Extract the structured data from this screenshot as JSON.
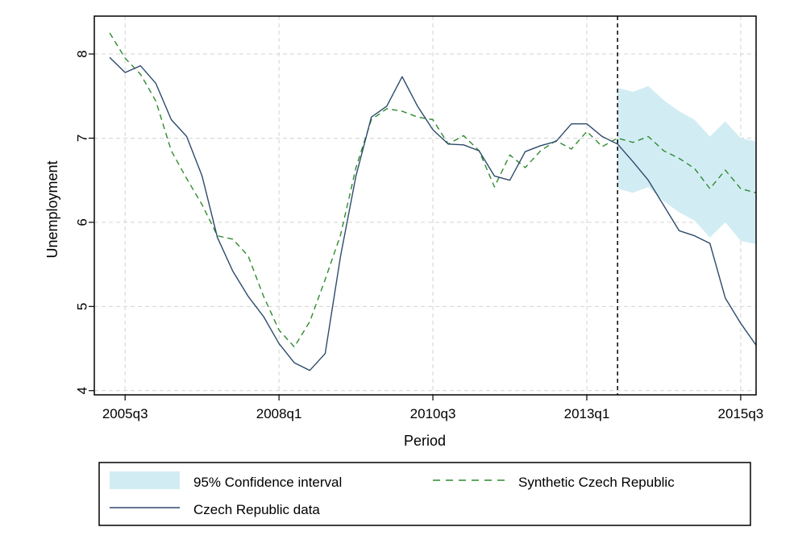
{
  "chart_data": {
    "type": "line",
    "xlabel": "Period",
    "ylabel": "Unemployment",
    "xlim": [
      2005.0,
      2015.75
    ],
    "ylim": [
      3.95,
      8.45
    ],
    "y_ticks": [
      4,
      5,
      6,
      7,
      8
    ],
    "x_ticks": [
      {
        "value": 2005.5,
        "label": "2005q3"
      },
      {
        "value": 2008.0,
        "label": "2008q1"
      },
      {
        "value": 2010.5,
        "label": "2010q3"
      },
      {
        "value": 2013.0,
        "label": "2013q1"
      },
      {
        "value": 2015.5,
        "label": "2015q3"
      }
    ],
    "grid": true,
    "vline": 2013.5,
    "legend_position": "bottom",
    "colors": {
      "actual": "#2d4a6b",
      "synthetic": "#2e8b2e",
      "ci_fill": "#d2ecf4",
      "grid": "#d3d3d3"
    },
    "series": [
      {
        "name": "Czech Republic data",
        "style": "solid",
        "points": [
          [
            2005.25,
            7.96
          ],
          [
            2005.5,
            7.78
          ],
          [
            2005.75,
            7.86
          ],
          [
            2006.0,
            7.65
          ],
          [
            2006.25,
            7.22
          ],
          [
            2006.5,
            7.02
          ],
          [
            2006.75,
            6.55
          ],
          [
            2007.0,
            5.82
          ],
          [
            2007.25,
            5.42
          ],
          [
            2007.5,
            5.12
          ],
          [
            2007.75,
            4.88
          ],
          [
            2008.0,
            4.56
          ],
          [
            2008.25,
            4.33
          ],
          [
            2008.5,
            4.24
          ],
          [
            2008.75,
            4.44
          ],
          [
            2009.0,
            5.6
          ],
          [
            2009.25,
            6.55
          ],
          [
            2009.5,
            7.25
          ],
          [
            2009.75,
            7.38
          ],
          [
            2010.0,
            7.73
          ],
          [
            2010.25,
            7.38
          ],
          [
            2010.5,
            7.1
          ],
          [
            2010.75,
            6.93
          ],
          [
            2011.0,
            6.92
          ],
          [
            2011.25,
            6.85
          ],
          [
            2011.5,
            6.55
          ],
          [
            2011.75,
            6.5
          ],
          [
            2012.0,
            6.84
          ],
          [
            2012.25,
            6.91
          ],
          [
            2012.5,
            6.96
          ],
          [
            2012.75,
            7.17
          ],
          [
            2013.0,
            7.17
          ],
          [
            2013.25,
            7.02
          ],
          [
            2013.5,
            6.93
          ],
          [
            2013.75,
            6.72
          ],
          [
            2014.0,
            6.5
          ],
          [
            2014.25,
            6.2
          ],
          [
            2014.5,
            5.9
          ],
          [
            2014.75,
            5.84
          ],
          [
            2015.0,
            5.75
          ],
          [
            2015.25,
            5.1
          ],
          [
            2015.5,
            4.8
          ],
          [
            2015.75,
            4.54
          ]
        ]
      },
      {
        "name": "Synthetic Czech Republic",
        "style": "dashed",
        "points": [
          [
            2005.25,
            8.25
          ],
          [
            2005.5,
            7.95
          ],
          [
            2005.75,
            7.76
          ],
          [
            2006.0,
            7.44
          ],
          [
            2006.25,
            6.85
          ],
          [
            2006.5,
            6.52
          ],
          [
            2006.75,
            6.21
          ],
          [
            2007.0,
            5.84
          ],
          [
            2007.25,
            5.8
          ],
          [
            2007.5,
            5.6
          ],
          [
            2007.75,
            5.12
          ],
          [
            2008.0,
            4.72
          ],
          [
            2008.25,
            4.52
          ],
          [
            2008.5,
            4.82
          ],
          [
            2008.75,
            5.32
          ],
          [
            2009.0,
            5.85
          ],
          [
            2009.25,
            6.65
          ],
          [
            2009.5,
            7.22
          ],
          [
            2009.75,
            7.35
          ],
          [
            2010.0,
            7.32
          ],
          [
            2010.25,
            7.25
          ],
          [
            2010.5,
            7.22
          ],
          [
            2010.75,
            6.93
          ],
          [
            2011.0,
            7.03
          ],
          [
            2011.25,
            6.85
          ],
          [
            2011.5,
            6.42
          ],
          [
            2011.75,
            6.8
          ],
          [
            2012.0,
            6.65
          ],
          [
            2012.25,
            6.85
          ],
          [
            2012.5,
            6.97
          ],
          [
            2012.75,
            6.87
          ],
          [
            2013.0,
            7.08
          ],
          [
            2013.25,
            6.9
          ],
          [
            2013.5,
            7.0
          ],
          [
            2013.75,
            6.95
          ],
          [
            2014.0,
            7.02
          ],
          [
            2014.25,
            6.85
          ],
          [
            2014.5,
            6.76
          ],
          [
            2014.75,
            6.64
          ],
          [
            2015.0,
            6.4
          ],
          [
            2015.25,
            6.62
          ],
          [
            2015.5,
            6.4
          ],
          [
            2015.75,
            6.35
          ]
        ]
      }
    ],
    "confidence_band": {
      "name": "95% Confidence interval",
      "upper": [
        [
          2013.5,
          7.6
        ],
        [
          2013.75,
          7.55
        ],
        [
          2014.0,
          7.62
        ],
        [
          2014.25,
          7.45
        ],
        [
          2014.5,
          7.32
        ],
        [
          2014.75,
          7.22
        ],
        [
          2015.0,
          7.02
        ],
        [
          2015.25,
          7.2
        ],
        [
          2015.5,
          7.0
        ],
        [
          2015.75,
          6.96
        ]
      ],
      "lower": [
        [
          2013.5,
          6.4
        ],
        [
          2013.75,
          6.35
        ],
        [
          2014.0,
          6.42
        ],
        [
          2014.25,
          6.25
        ],
        [
          2014.5,
          6.12
        ],
        [
          2014.75,
          6.02
        ],
        [
          2015.0,
          5.82
        ],
        [
          2015.25,
          6.0
        ],
        [
          2015.5,
          5.78
        ],
        [
          2015.75,
          5.74
        ]
      ]
    },
    "legend": [
      {
        "label": "95% Confidence interval",
        "kind": "band"
      },
      {
        "label": "Synthetic Czech Republic",
        "kind": "dashed"
      },
      {
        "label": "Czech Republic data",
        "kind": "solid"
      }
    ]
  }
}
